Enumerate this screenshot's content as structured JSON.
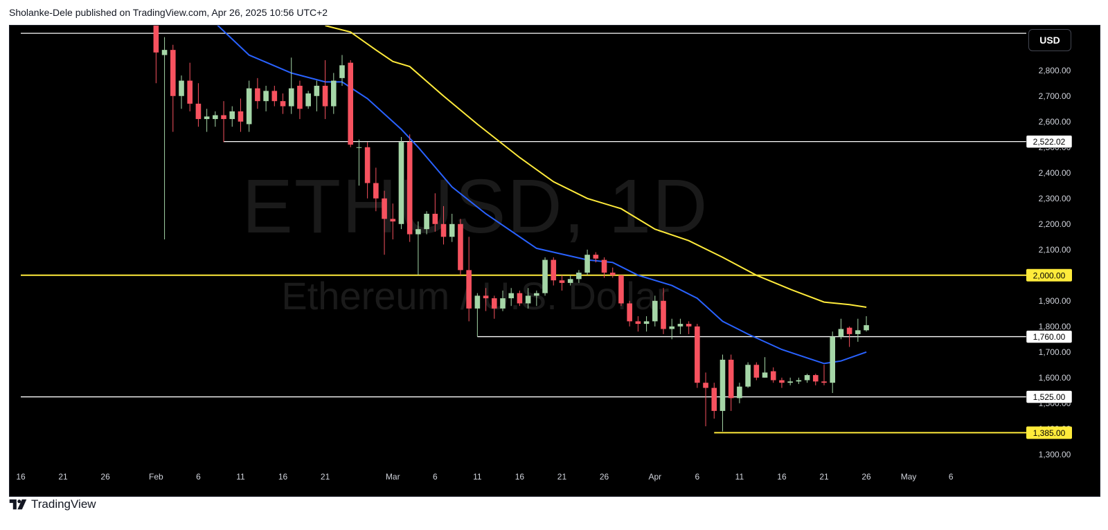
{
  "header": {
    "publisher_line": "Sholanke-Dele published on TradingView.com, Apr 26, 2025 10:56 UTC+2"
  },
  "toolbar": {
    "currency_label": "USD"
  },
  "footer": {
    "brand_name": "TradingView",
    "brand_icon": "tradingview-logo-icon"
  },
  "watermark": {
    "symbol_line": "ETHUSD, 1D",
    "name_line": "Ethereum / U.S. Dollar"
  },
  "colors": {
    "background": "#000000",
    "up_candle": "#a5d6a7",
    "down_candle": "#f7525f",
    "ma_short": "#2962ff",
    "ma_long": "#ffeb3b",
    "level_white": "#ffffff",
    "level_yellow": "#ffeb3b",
    "axis_text": "#d1d4dc"
  },
  "chart_data": {
    "type": "candlestick",
    "title": "",
    "symbol": "ETHUSD",
    "timeframe": "1D",
    "currency": "USD",
    "ylim": [
      1240,
      2975
    ],
    "y_ticks": [
      1300,
      1400,
      1500,
      1600,
      1700,
      1800,
      1900,
      2000,
      2100,
      2200,
      2300,
      2400,
      2500,
      2600,
      2700,
      2800
    ],
    "y_tick_labels": [
      "1,300.00",
      "1,400.00",
      "1,500.00",
      "1,600.00",
      "1,700.00",
      "1,800.00",
      "1,900.00",
      "2,000.00",
      "2,100.00",
      "2,200.00",
      "2,300.00",
      "2,400.00",
      "2,500.00",
      "2,600.00",
      "2,700.00",
      "2,800.00"
    ],
    "x_range": [
      "2025-01-16",
      "2025-05-10"
    ],
    "x_ticks": [
      {
        "date": "2025-01-16",
        "label": "16"
      },
      {
        "date": "2025-01-21",
        "label": "21"
      },
      {
        "date": "2025-01-26",
        "label": "26"
      },
      {
        "date": "2025-02-01",
        "label": "Feb"
      },
      {
        "date": "2025-02-06",
        "label": "6"
      },
      {
        "date": "2025-02-11",
        "label": "11"
      },
      {
        "date": "2025-02-16",
        "label": "16"
      },
      {
        "date": "2025-02-21",
        "label": "21"
      },
      {
        "date": "2025-03-01",
        "label": "Mar"
      },
      {
        "date": "2025-03-06",
        "label": "6"
      },
      {
        "date": "2025-03-11",
        "label": "11"
      },
      {
        "date": "2025-03-16",
        "label": "16"
      },
      {
        "date": "2025-03-21",
        "label": "21"
      },
      {
        "date": "2025-03-26",
        "label": "26"
      },
      {
        "date": "2025-04-01",
        "label": "Apr"
      },
      {
        "date": "2025-04-06",
        "label": "6"
      },
      {
        "date": "2025-04-11",
        "label": "11"
      },
      {
        "date": "2025-04-16",
        "label": "16"
      },
      {
        "date": "2025-04-21",
        "label": "21"
      },
      {
        "date": "2025-04-26",
        "label": "26"
      },
      {
        "date": "2025-05-01",
        "label": "May"
      },
      {
        "date": "2025-05-06",
        "label": "6"
      }
    ],
    "horizontal_levels": [
      {
        "price": 2945,
        "color": "white",
        "from": "2025-01-16",
        "label": ""
      },
      {
        "price": 2522.02,
        "color": "white",
        "from": "2025-02-09",
        "label": "2,522.02"
      },
      {
        "price": 2000,
        "color": "yellow",
        "from": "2025-01-16",
        "label": "2,000.00"
      },
      {
        "price": 1760,
        "color": "white",
        "from": "2025-03-11",
        "label": "1,760.00"
      },
      {
        "price": 1525,
        "color": "white",
        "from": "2025-01-16",
        "label": "1,525.00"
      },
      {
        "price": 1385,
        "color": "yellow",
        "from": "2025-04-08",
        "label": "1,385.00"
      }
    ],
    "candles": [
      {
        "date": "2025-02-01",
        "o": 3300,
        "h": 3400,
        "l": 2750,
        "c": 2870
      },
      {
        "date": "2025-02-02",
        "o": 2860,
        "h": 2930,
        "l": 2140,
        "c": 2880
      },
      {
        "date": "2025-02-03",
        "o": 2880,
        "h": 2900,
        "l": 2560,
        "c": 2700
      },
      {
        "date": "2025-02-04",
        "o": 2700,
        "h": 2780,
        "l": 2650,
        "c": 2760
      },
      {
        "date": "2025-02-05",
        "o": 2760,
        "h": 2830,
        "l": 2640,
        "c": 2670
      },
      {
        "date": "2025-02-06",
        "o": 2670,
        "h": 2750,
        "l": 2580,
        "c": 2610
      },
      {
        "date": "2025-02-07",
        "o": 2610,
        "h": 2650,
        "l": 2560,
        "c": 2620
      },
      {
        "date": "2025-02-08",
        "o": 2610,
        "h": 2640,
        "l": 2580,
        "c": 2625
      },
      {
        "date": "2025-02-09",
        "o": 2625,
        "h": 2680,
        "l": 2520,
        "c": 2610
      },
      {
        "date": "2025-02-10",
        "o": 2610,
        "h": 2660,
        "l": 2580,
        "c": 2640
      },
      {
        "date": "2025-02-11",
        "o": 2640,
        "h": 2690,
        "l": 2560,
        "c": 2600
      },
      {
        "date": "2025-02-12",
        "o": 2590,
        "h": 2760,
        "l": 2560,
        "c": 2730
      },
      {
        "date": "2025-02-13",
        "o": 2730,
        "h": 2770,
        "l": 2650,
        "c": 2680
      },
      {
        "date": "2025-02-14",
        "o": 2680,
        "h": 2740,
        "l": 2640,
        "c": 2720
      },
      {
        "date": "2025-02-15",
        "o": 2720,
        "h": 2740,
        "l": 2660,
        "c": 2680
      },
      {
        "date": "2025-02-16",
        "o": 2680,
        "h": 2710,
        "l": 2630,
        "c": 2660
      },
      {
        "date": "2025-02-17",
        "o": 2660,
        "h": 2850,
        "l": 2630,
        "c": 2730
      },
      {
        "date": "2025-02-18",
        "o": 2740,
        "h": 2760,
        "l": 2610,
        "c": 2650
      },
      {
        "date": "2025-02-19",
        "o": 2660,
        "h": 2720,
        "l": 2650,
        "c": 2710
      },
      {
        "date": "2025-02-20",
        "o": 2700,
        "h": 2760,
        "l": 2640,
        "c": 2740
      },
      {
        "date": "2025-02-21",
        "o": 2740,
        "h": 2840,
        "l": 2610,
        "c": 2660
      },
      {
        "date": "2025-02-22",
        "o": 2660,
        "h": 2790,
        "l": 2630,
        "c": 2760
      },
      {
        "date": "2025-02-23",
        "o": 2770,
        "h": 2860,
        "l": 2740,
        "c": 2820
      },
      {
        "date": "2025-02-24",
        "o": 2830,
        "h": 2840,
        "l": 2500,
        "c": 2510
      },
      {
        "date": "2025-02-25",
        "o": 2500,
        "h": 2530,
        "l": 2350,
        "c": 2500
      },
      {
        "date": "2025-02-26",
        "o": 2500,
        "h": 2520,
        "l": 2300,
        "c": 2360
      },
      {
        "date": "2025-02-27",
        "o": 2360,
        "h": 2420,
        "l": 2250,
        "c": 2300
      },
      {
        "date": "2025-02-28",
        "o": 2300,
        "h": 2330,
        "l": 2080,
        "c": 2220
      },
      {
        "date": "2025-03-01",
        "o": 2220,
        "h": 2280,
        "l": 2140,
        "c": 2210
      },
      {
        "date": "2025-03-02",
        "o": 2200,
        "h": 2540,
        "l": 2180,
        "c": 2520
      },
      {
        "date": "2025-03-03",
        "o": 2520,
        "h": 2550,
        "l": 2130,
        "c": 2160
      },
      {
        "date": "2025-03-04",
        "o": 2160,
        "h": 2210,
        "l": 2000,
        "c": 2180
      },
      {
        "date": "2025-03-05",
        "o": 2180,
        "h": 2250,
        "l": 2160,
        "c": 2240
      },
      {
        "date": "2025-03-06",
        "o": 2240,
        "h": 2320,
        "l": 2170,
        "c": 2200
      },
      {
        "date": "2025-03-07",
        "o": 2200,
        "h": 2270,
        "l": 2120,
        "c": 2150
      },
      {
        "date": "2025-03-08",
        "o": 2150,
        "h": 2240,
        "l": 2130,
        "c": 2200
      },
      {
        "date": "2025-03-09",
        "o": 2200,
        "h": 2220,
        "l": 2000,
        "c": 2020
      },
      {
        "date": "2025-03-10",
        "o": 2020,
        "h": 2150,
        "l": 1820,
        "c": 1870
      },
      {
        "date": "2025-03-11",
        "o": 1870,
        "h": 1930,
        "l": 1760,
        "c": 1920
      },
      {
        "date": "2025-03-12",
        "o": 1920,
        "h": 1950,
        "l": 1860,
        "c": 1910
      },
      {
        "date": "2025-03-13",
        "o": 1910,
        "h": 1920,
        "l": 1830,
        "c": 1870
      },
      {
        "date": "2025-03-14",
        "o": 1870,
        "h": 1940,
        "l": 1860,
        "c": 1910
      },
      {
        "date": "2025-03-15",
        "o": 1910,
        "h": 1950,
        "l": 1880,
        "c": 1930
      },
      {
        "date": "2025-03-16",
        "o": 1930,
        "h": 1940,
        "l": 1880,
        "c": 1890
      },
      {
        "date": "2025-03-17",
        "o": 1890,
        "h": 1950,
        "l": 1870,
        "c": 1920
      },
      {
        "date": "2025-03-18",
        "o": 1920,
        "h": 1940,
        "l": 1880,
        "c": 1930
      },
      {
        "date": "2025-03-19",
        "o": 1930,
        "h": 2070,
        "l": 1920,
        "c": 2060
      },
      {
        "date": "2025-03-20",
        "o": 2060,
        "h": 2070,
        "l": 1960,
        "c": 1980
      },
      {
        "date": "2025-03-21",
        "o": 1980,
        "h": 2000,
        "l": 1940,
        "c": 1970
      },
      {
        "date": "2025-03-22",
        "o": 1970,
        "h": 2000,
        "l": 1960,
        "c": 1985
      },
      {
        "date": "2025-03-23",
        "o": 1985,
        "h": 2020,
        "l": 1970,
        "c": 2010
      },
      {
        "date": "2025-03-24",
        "o": 2010,
        "h": 2100,
        "l": 2000,
        "c": 2080
      },
      {
        "date": "2025-03-25",
        "o": 2080,
        "h": 2090,
        "l": 2050,
        "c": 2065
      },
      {
        "date": "2025-03-26",
        "o": 2060,
        "h": 2070,
        "l": 1990,
        "c": 2010
      },
      {
        "date": "2025-03-27",
        "o": 2010,
        "h": 2030,
        "l": 1990,
        "c": 2000
      },
      {
        "date": "2025-03-28",
        "o": 2000,
        "h": 2000,
        "l": 1880,
        "c": 1890
      },
      {
        "date": "2025-03-29",
        "o": 1890,
        "h": 1900,
        "l": 1800,
        "c": 1820
      },
      {
        "date": "2025-03-30",
        "o": 1820,
        "h": 1840,
        "l": 1780,
        "c": 1810
      },
      {
        "date": "2025-03-31",
        "o": 1810,
        "h": 1840,
        "l": 1780,
        "c": 1820
      },
      {
        "date": "2025-04-01",
        "o": 1820,
        "h": 1920,
        "l": 1800,
        "c": 1900
      },
      {
        "date": "2025-04-02",
        "o": 1900,
        "h": 1950,
        "l": 1770,
        "c": 1790
      },
      {
        "date": "2025-04-03",
        "o": 1790,
        "h": 1830,
        "l": 1750,
        "c": 1800
      },
      {
        "date": "2025-04-04",
        "o": 1800,
        "h": 1830,
        "l": 1770,
        "c": 1810
      },
      {
        "date": "2025-04-05",
        "o": 1810,
        "h": 1820,
        "l": 1770,
        "c": 1800
      },
      {
        "date": "2025-04-06",
        "o": 1800,
        "h": 1810,
        "l": 1560,
        "c": 1580
      },
      {
        "date": "2025-04-07",
        "o": 1580,
        "h": 1620,
        "l": 1410,
        "c": 1560
      },
      {
        "date": "2025-04-08",
        "o": 1560,
        "h": 1580,
        "l": 1440,
        "c": 1470
      },
      {
        "date": "2025-04-09",
        "o": 1470,
        "h": 1690,
        "l": 1390,
        "c": 1670
      },
      {
        "date": "2025-04-10",
        "o": 1670,
        "h": 1690,
        "l": 1470,
        "c": 1520
      },
      {
        "date": "2025-04-11",
        "o": 1520,
        "h": 1580,
        "l": 1500,
        "c": 1565
      },
      {
        "date": "2025-04-12",
        "o": 1565,
        "h": 1660,
        "l": 1560,
        "c": 1650
      },
      {
        "date": "2025-04-13",
        "o": 1650,
        "h": 1660,
        "l": 1590,
        "c": 1600
      },
      {
        "date": "2025-04-14",
        "o": 1600,
        "h": 1680,
        "l": 1600,
        "c": 1620
      },
      {
        "date": "2025-04-15",
        "o": 1625,
        "h": 1640,
        "l": 1580,
        "c": 1590
      },
      {
        "date": "2025-04-16",
        "o": 1590,
        "h": 1600,
        "l": 1560,
        "c": 1580
      },
      {
        "date": "2025-04-17",
        "o": 1580,
        "h": 1600,
        "l": 1570,
        "c": 1585
      },
      {
        "date": "2025-04-18",
        "o": 1585,
        "h": 1600,
        "l": 1575,
        "c": 1590
      },
      {
        "date": "2025-04-19",
        "o": 1590,
        "h": 1615,
        "l": 1580,
        "c": 1610
      },
      {
        "date": "2025-04-20",
        "o": 1610,
        "h": 1615,
        "l": 1570,
        "c": 1585
      },
      {
        "date": "2025-04-21",
        "o": 1585,
        "h": 1650,
        "l": 1570,
        "c": 1580
      },
      {
        "date": "2025-04-22",
        "o": 1580,
        "h": 1780,
        "l": 1540,
        "c": 1760
      },
      {
        "date": "2025-04-23",
        "o": 1760,
        "h": 1830,
        "l": 1750,
        "c": 1790
      },
      {
        "date": "2025-04-24",
        "o": 1795,
        "h": 1800,
        "l": 1720,
        "c": 1770
      },
      {
        "date": "2025-04-25",
        "o": 1770,
        "h": 1830,
        "l": 1740,
        "c": 1785
      },
      {
        "date": "2025-04-26",
        "o": 1785,
        "h": 1840,
        "l": 1780,
        "c": 1805
      }
    ],
    "series": [
      {
        "kind": "moving-average-short",
        "color": "#2962ff",
        "points": [
          {
            "date": "2025-02-08",
            "value": 2985
          },
          {
            "date": "2025-02-12",
            "value": 2860
          },
          {
            "date": "2025-02-17",
            "value": 2790
          },
          {
            "date": "2025-02-21",
            "value": 2755
          },
          {
            "date": "2025-02-23",
            "value": 2755
          },
          {
            "date": "2025-02-26",
            "value": 2690
          },
          {
            "date": "2025-03-02",
            "value": 2570
          },
          {
            "date": "2025-03-04",
            "value": 2500
          },
          {
            "date": "2025-03-08",
            "value": 2345
          },
          {
            "date": "2025-03-12",
            "value": 2240
          },
          {
            "date": "2025-03-18",
            "value": 2105
          },
          {
            "date": "2025-03-20",
            "value": 2090
          },
          {
            "date": "2025-03-24",
            "value": 2060
          },
          {
            "date": "2025-03-27",
            "value": 2050
          },
          {
            "date": "2025-03-30",
            "value": 2000
          },
          {
            "date": "2025-04-03",
            "value": 1960
          },
          {
            "date": "2025-04-06",
            "value": 1910
          },
          {
            "date": "2025-04-09",
            "value": 1820
          },
          {
            "date": "2025-04-12",
            "value": 1770
          },
          {
            "date": "2025-04-16",
            "value": 1710
          },
          {
            "date": "2025-04-21",
            "value": 1655
          },
          {
            "date": "2025-04-23",
            "value": 1665
          },
          {
            "date": "2025-04-26",
            "value": 1700
          }
        ]
      },
      {
        "kind": "moving-average-long",
        "color": "#ffeb3b",
        "points": [
          {
            "date": "2025-02-21",
            "value": 2975
          },
          {
            "date": "2025-02-24",
            "value": 2950
          },
          {
            "date": "2025-02-27",
            "value": 2880
          },
          {
            "date": "2025-03-01",
            "value": 2835
          },
          {
            "date": "2025-03-03",
            "value": 2815
          },
          {
            "date": "2025-03-07",
            "value": 2700
          },
          {
            "date": "2025-03-11",
            "value": 2590
          },
          {
            "date": "2025-03-16",
            "value": 2460
          },
          {
            "date": "2025-03-20",
            "value": 2365
          },
          {
            "date": "2025-03-24",
            "value": 2300
          },
          {
            "date": "2025-03-28",
            "value": 2260
          },
          {
            "date": "2025-04-01",
            "value": 2180
          },
          {
            "date": "2025-04-05",
            "value": 2135
          },
          {
            "date": "2025-04-09",
            "value": 2070
          },
          {
            "date": "2025-04-13",
            "value": 2000
          },
          {
            "date": "2025-04-17",
            "value": 1945
          },
          {
            "date": "2025-04-21",
            "value": 1895
          },
          {
            "date": "2025-04-24",
            "value": 1885
          },
          {
            "date": "2025-04-26",
            "value": 1875
          }
        ]
      }
    ]
  }
}
